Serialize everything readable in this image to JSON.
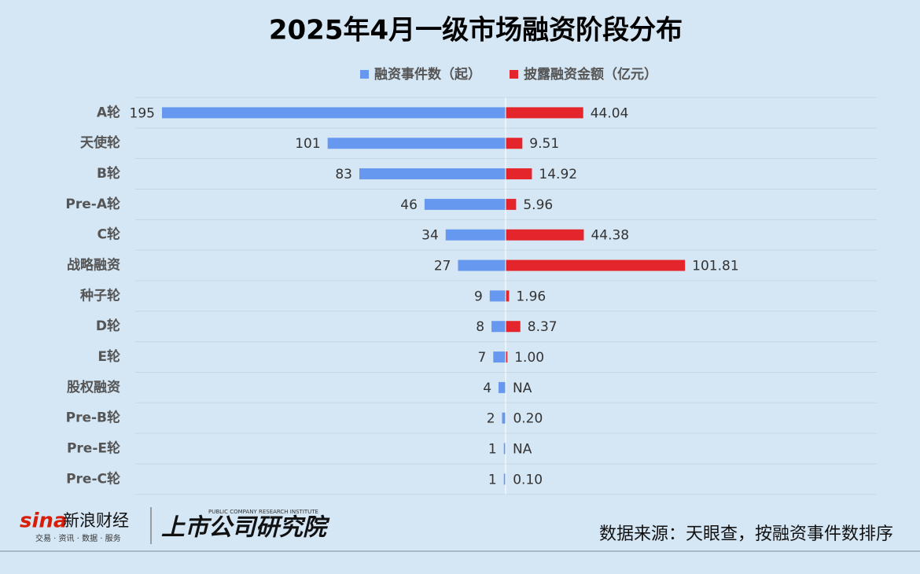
{
  "chart_data": {
    "type": "butterfly-bar",
    "title": "2025年4月一级市场融资阶段分布",
    "categories": [
      "A轮",
      "天使轮",
      "B轮",
      "Pre-A轮",
      "C轮",
      "战略融资",
      "种子轮",
      "D轮",
      "E轮",
      "股权融资",
      "Pre-B轮",
      "Pre-E轮",
      "Pre-C轮"
    ],
    "series": [
      {
        "name": "融资事件数（起）",
        "color": "#6798f0",
        "values": [
          195,
          101,
          83,
          46,
          34,
          27,
          9,
          8,
          7,
          4,
          2,
          1,
          1
        ]
      },
      {
        "name": "披露融资金额（亿元）",
        "color": "#e4262c",
        "values": [
          44.04,
          9.51,
          14.92,
          5.96,
          44.38,
          101.81,
          1.96,
          8.37,
          1.0,
          null,
          0.2,
          null,
          0.1
        ],
        "value_labels": [
          "44.04",
          "9.51",
          "14.92",
          "5.96",
          "44.38",
          "101.81",
          "1.96",
          "8.37",
          "1.00",
          "NA",
          "0.20",
          "NA",
          "0.10"
        ]
      }
    ],
    "source": "数据来源：天眼查，按融资事件数排序",
    "branding": {
      "sina": "sina",
      "sina_name": "新浪财经",
      "sina_slogan": "交易 · 资讯 · 数据 · 服务",
      "institute": "上市公司研究院",
      "institute_en": "PUBLIC COMPANY RESEARCH INSTITUTE"
    }
  }
}
